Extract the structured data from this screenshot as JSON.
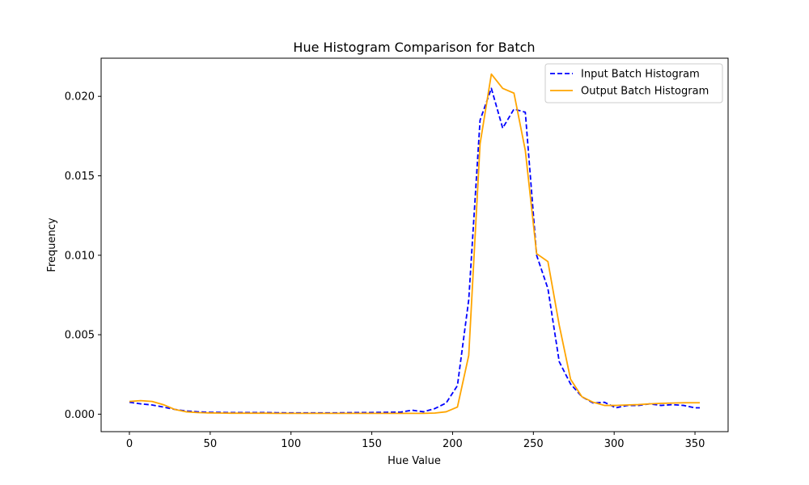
{
  "chart_data": {
    "type": "line",
    "title": "Hue Histogram Comparison for Batch",
    "xlabel": "Hue Value",
    "ylabel": "Frequency",
    "xlim": [
      -17.5,
      370.5
    ],
    "ylim": [
      -0.0011,
      0.0224
    ],
    "xticks": [
      0,
      50,
      100,
      150,
      200,
      250,
      300,
      350
    ],
    "xtick_labels": [
      "0",
      "50",
      "100",
      "150",
      "200",
      "250",
      "300",
      "350"
    ],
    "yticks": [
      0.0,
      0.005,
      0.01,
      0.015,
      0.02
    ],
    "ytick_labels": [
      "0.000",
      "0.005",
      "0.010",
      "0.015",
      "0.020"
    ],
    "grid": false,
    "legend_position": "upper right",
    "x": [
      0,
      7,
      14,
      21,
      28,
      35,
      42,
      49,
      56,
      63,
      70,
      77,
      84,
      91,
      98,
      105,
      112,
      119,
      126,
      133,
      140,
      147,
      154,
      161,
      168,
      175,
      182,
      189,
      196,
      203,
      210,
      217,
      224,
      231,
      238,
      245,
      252,
      259,
      266,
      273,
      280,
      287,
      294,
      301,
      308,
      315,
      322,
      329,
      336,
      343,
      350,
      353
    ],
    "series": [
      {
        "name": "Input Batch Histogram",
        "color": "#0000ff",
        "linestyle": "dashed",
        "values": [
          0.00075,
          0.00065,
          0.00058,
          0.00045,
          0.0003,
          0.0002,
          0.00015,
          0.00012,
          0.00011,
          0.0001,
          0.0001,
          0.0001,
          0.0001,
          9e-05,
          8e-05,
          8e-05,
          8e-05,
          8e-05,
          8e-05,
          9e-05,
          0.0001,
          0.0001,
          0.00011,
          0.00012,
          0.00013,
          0.00025,
          0.00015,
          0.00035,
          0.0007,
          0.0018,
          0.0072,
          0.0185,
          0.0205,
          0.018,
          0.0192,
          0.019,
          0.01,
          0.0079,
          0.0033,
          0.0019,
          0.0011,
          0.0007,
          0.00075,
          0.0004,
          0.00055,
          0.00055,
          0.00065,
          0.00055,
          0.0006,
          0.00055,
          0.0004,
          0.0004
        ]
      },
      {
        "name": "Output Batch Histogram",
        "color": "#ffa500",
        "linestyle": "solid",
        "values": [
          0.0008,
          0.00085,
          0.0008,
          0.0006,
          0.0003,
          0.00015,
          0.0001,
          8e-05,
          7e-05,
          6e-05,
          6e-05,
          6e-05,
          6e-05,
          5e-05,
          5e-05,
          5e-05,
          5e-05,
          5e-05,
          5e-05,
          5e-05,
          5e-05,
          5e-05,
          5e-05,
          5e-05,
          5e-05,
          5e-05,
          5e-05,
          7e-05,
          0.00015,
          0.00045,
          0.0037,
          0.017,
          0.0214,
          0.0205,
          0.0202,
          0.0166,
          0.0101,
          0.0096,
          0.0056,
          0.0022,
          0.0011,
          0.00075,
          0.00055,
          0.00055,
          0.00058,
          0.0006,
          0.00065,
          0.00068,
          0.0007,
          0.00072,
          0.00072,
          0.00072
        ]
      }
    ]
  }
}
